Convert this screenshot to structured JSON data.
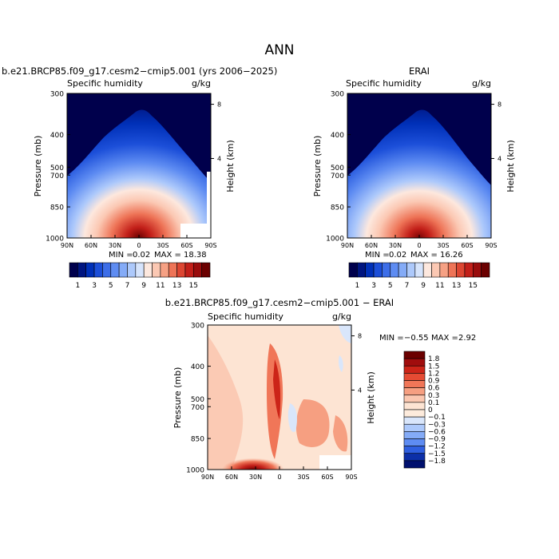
{
  "page_title": "ANN",
  "chart_data": [
    {
      "type": "contour",
      "title": "b.e21.BRCP85.f09_g17.cesm2−cmip5.001 (yrs 2006−2025)",
      "subtitle_left": "Specific humidity",
      "subtitle_right": "g/kg",
      "ylabel": "Pressure (mb)",
      "y2label": "Height (km)",
      "x_ticks": [
        "90N",
        "60N",
        "30N",
        "0",
        "30S",
        "60S",
        "90S"
      ],
      "y_ticks": [
        "300",
        "400",
        "500",
        "700",
        "850",
        "1000"
      ],
      "y2_ticks": [
        "8",
        "4"
      ],
      "stats": {
        "min_label": "MIN =",
        "min": "0.02",
        "max_label": "MAX =",
        "max": "18.38"
      },
      "colorbar": {
        "labels": [
          "1",
          "3",
          "5",
          "7",
          "9",
          "11",
          "13",
          "15"
        ],
        "colors": [
          "#00004c",
          "#001580",
          "#0030b8",
          "#1c4fd9",
          "#3d6ee8",
          "#5e8cf2",
          "#84abf7",
          "#adc9fb",
          "#d6e4fc",
          "#fde8de",
          "#fbc8b3",
          "#f6a184",
          "#ee7457",
          "#dd4632",
          "#c21f19",
          "#990c0c",
          "#6b0000"
        ]
      },
      "max_value": 18.38,
      "min_value": 0.02
    },
    {
      "type": "contour",
      "title": "ERAI",
      "subtitle_left": "Specific humidity",
      "subtitle_right": "g/kg",
      "ylabel": "Pressure (mb)",
      "y2label": "Height (km)",
      "x_ticks": [
        "90N",
        "60N",
        "30N",
        "0",
        "30S",
        "60S",
        "90S"
      ],
      "y_ticks": [
        "300",
        "400",
        "500",
        "700",
        "850",
        "1000"
      ],
      "y2_ticks": [
        "8",
        "4"
      ],
      "stats": {
        "min_label": "MIN =",
        "min": "0.02",
        "max_label": "MAX =",
        "max": "16.26"
      },
      "colorbar": {
        "labels": [
          "1",
          "3",
          "5",
          "7",
          "9",
          "11",
          "13",
          "15"
        ],
        "colors": [
          "#00004c",
          "#001580",
          "#0030b8",
          "#1c4fd9",
          "#3d6ee8",
          "#5e8cf2",
          "#84abf7",
          "#adc9fb",
          "#d6e4fc",
          "#fde8de",
          "#fbc8b3",
          "#f6a184",
          "#ee7457",
          "#dd4632",
          "#c21f19",
          "#990c0c",
          "#6b0000"
        ]
      },
      "max_value": 16.26,
      "min_value": 0.02
    },
    {
      "type": "contour",
      "title": "b.e21.BRCP85.f09_g17.cesm2−cmip5.001 − ERAI",
      "subtitle_left": "Specific humidity",
      "subtitle_right": "g/kg",
      "ylabel": "Pressure (mb)",
      "y2label": "Height (km)",
      "x_ticks": [
        "90N",
        "60N",
        "30N",
        "0",
        "30S",
        "60S",
        "90S"
      ],
      "y_ticks": [
        "300",
        "400",
        "500",
        "700",
        "850",
        "1000"
      ],
      "y2_ticks": [
        "8",
        "4"
      ],
      "stats": {
        "min_label": "MIN =",
        "min": "−0.55",
        "max_label": "MAX =",
        "max": "2.92"
      },
      "colorbar": {
        "labels": [
          "1.8",
          "1.5",
          "1.2",
          "0.9",
          "0.6",
          "0.3",
          "0.1",
          "0",
          "−0.1",
          "−0.3",
          "−0.6",
          "−0.9",
          "−1.2",
          "−1.5",
          "−1.8"
        ],
        "colors": [
          "#6b0000",
          "#a00d0d",
          "#cc2418",
          "#e54b33",
          "#f07658",
          "#f69f81",
          "#fbc7b0",
          "#fde4d3",
          "#fdebdc",
          "#d9e6fb",
          "#adc9fb",
          "#84abf7",
          "#5e8cf2",
          "#2f5fe0",
          "#0c2fa8",
          "#00106e"
        ]
      },
      "max_value": 2.92,
      "min_value": -0.55
    }
  ]
}
